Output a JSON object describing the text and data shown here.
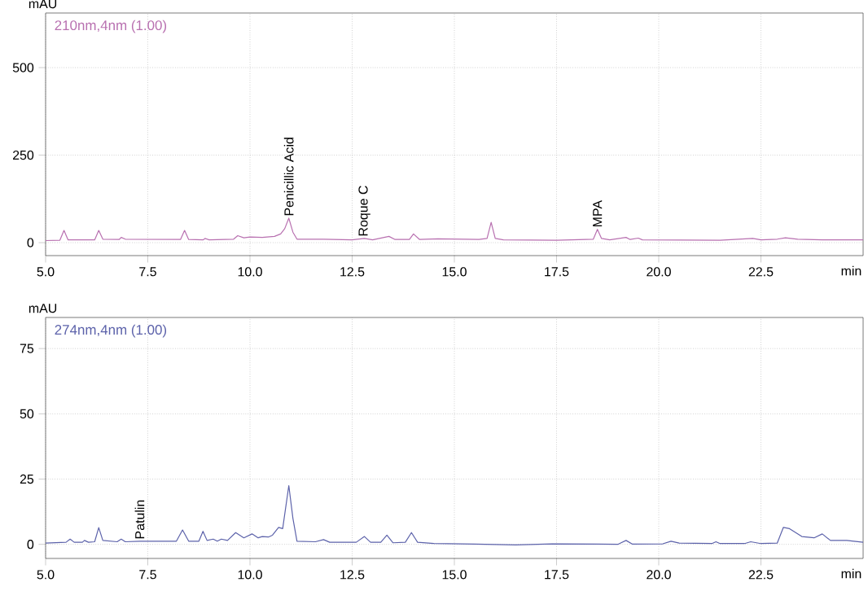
{
  "chart_data": [
    {
      "type": "line",
      "ylabel": "mAU",
      "xlabel": "min",
      "grid": true,
      "xlim": [
        5,
        25
      ],
      "ylim": [
        -37,
        656
      ],
      "xticks": [
        {
          "value": 5,
          "label": "5.0"
        },
        7.5,
        {
          "value": 10,
          "label": "10.0"
        },
        12.5,
        {
          "value": 15,
          "label": "15.0"
        },
        17.5,
        {
          "value": 20,
          "label": "20.0"
        },
        22.5
      ],
      "yticks": [
        0,
        250,
        500
      ],
      "x": [
        5.0,
        5.35,
        5.45,
        5.55,
        6.2,
        6.3,
        6.4,
        6.8,
        6.85,
        6.95,
        8.3,
        8.4,
        8.5,
        8.85,
        8.9,
        9.0,
        9.6,
        9.7,
        9.85,
        10.0,
        10.3,
        10.6,
        10.75,
        10.85,
        10.95,
        11.05,
        11.15,
        11.8,
        12.5,
        12.8,
        13.0,
        13.4,
        13.55,
        13.9,
        14.0,
        14.15,
        14.6,
        15.6,
        15.8,
        15.9,
        16.0,
        16.2,
        17.5,
        18.4,
        18.5,
        18.6,
        18.8,
        19.2,
        19.3,
        19.5,
        19.6,
        21.5,
        22.3,
        22.5,
        22.9,
        23.1,
        23.4,
        24.0,
        25.0
      ],
      "series": [
        {
          "name": "210nm,4nm (1.00)",
          "color": "#b870b0",
          "values": [
            6,
            7,
            35,
            8,
            8,
            35,
            10,
            9,
            15,
            10,
            9,
            35,
            9,
            8,
            12,
            8,
            10,
            20,
            14,
            16,
            15,
            18,
            25,
            40,
            70,
            30,
            10,
            10,
            8,
            12,
            8,
            18,
            9,
            9,
            25,
            9,
            11,
            9,
            12,
            58,
            12,
            8,
            7,
            10,
            38,
            12,
            8,
            15,
            9,
            13,
            8,
            7,
            12,
            8,
            10,
            14,
            10,
            8,
            8
          ]
        }
      ],
      "annotations": [
        {
          "text": "Penicillic Acid",
          "x": 10.95,
          "y": 70
        },
        {
          "text": "Roque C",
          "x": 12.8,
          "y": 12
        },
        {
          "text": "MPA",
          "x": 18.5,
          "y": 38
        }
      ]
    },
    {
      "type": "line",
      "ylabel": "mAU",
      "xlabel": "min",
      "grid": true,
      "xlim": [
        5,
        25
      ],
      "ylim": [
        -5.4,
        86.9
      ],
      "xticks": [
        {
          "value": 5,
          "label": "5.0"
        },
        7.5,
        {
          "value": 10,
          "label": "10.0"
        },
        12.5,
        {
          "value": 15,
          "label": "15.0"
        },
        17.5,
        {
          "value": 20,
          "label": "20.0"
        },
        22.5
      ],
      "yticks": [
        0,
        25,
        50,
        75
      ],
      "x": [
        5.0,
        5.5,
        5.6,
        5.7,
        5.9,
        5.95,
        6.05,
        6.2,
        6.3,
        6.4,
        6.75,
        6.85,
        6.95,
        7.3,
        8.2,
        8.35,
        8.5,
        8.75,
        8.85,
        8.95,
        9.1,
        9.2,
        9.3,
        9.45,
        9.65,
        9.85,
        10.05,
        10.2,
        10.3,
        10.45,
        10.55,
        10.7,
        10.8,
        10.95,
        11.05,
        11.15,
        11.6,
        11.8,
        11.95,
        12.6,
        12.8,
        12.95,
        13.2,
        13.35,
        13.5,
        13.8,
        13.95,
        14.1,
        14.5,
        15.5,
        16.5,
        17.4,
        18.5,
        19.0,
        19.2,
        19.35,
        20.1,
        20.3,
        20.5,
        21.3,
        21.4,
        21.5,
        22.1,
        22.25,
        22.5,
        22.9,
        23.05,
        23.2,
        23.5,
        23.8,
        24.0,
        24.2,
        24.6,
        25.0
      ],
      "series": [
        {
          "name": "274nm,4nm (1.00)",
          "color": "#5c62aa",
          "values": [
            0.5,
            0.8,
            2,
            0.8,
            0.8,
            1.5,
            0.8,
            1,
            6.4,
            1.5,
            1,
            2,
            1,
            1.2,
            1.2,
            5.5,
            1.2,
            1.2,
            5,
            1.5,
            2,
            1.2,
            2,
            1.5,
            4.5,
            2.5,
            4,
            2.5,
            3,
            2.8,
            3.5,
            6.5,
            6,
            22.5,
            10,
            1.2,
            1,
            1.8,
            0.8,
            0.8,
            3,
            0.8,
            0.8,
            3.5,
            0.6,
            0.8,
            4.5,
            0.8,
            0.3,
            0.1,
            -0.2,
            0.2,
            0.1,
            0,
            1.5,
            0.1,
            0.2,
            1.2,
            0.5,
            0.3,
            1,
            0.3,
            0.3,
            1,
            0.3,
            0.5,
            6.5,
            6,
            3,
            2.5,
            4,
            1.5,
            1.5,
            0.8
          ]
        }
      ],
      "annotations": [
        {
          "text": "Patulin",
          "x": 7.3,
          "y": 1.2
        }
      ]
    }
  ]
}
